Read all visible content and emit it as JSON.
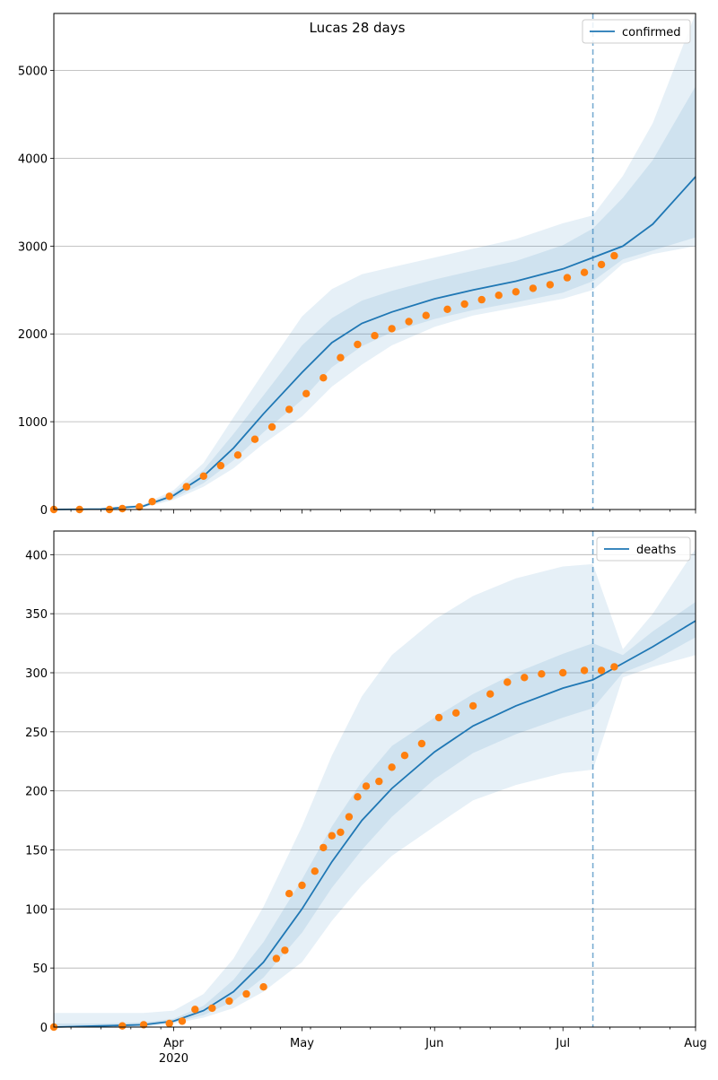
{
  "chart_data": [
    {
      "type": "line",
      "title": "Lucas 28 days",
      "xlabel": "",
      "ylabel": "",
      "xlim": [
        "2020-03-04",
        "2020-08-01"
      ],
      "ylim": [
        0,
        5650
      ],
      "yticks": [
        0,
        1000,
        2000,
        3000,
        4000,
        5000
      ],
      "grid": "horizontal",
      "legend": {
        "position": "top-right",
        "entries": [
          "confirmed"
        ]
      },
      "forecast_start": "2020-07-08",
      "series": [
        {
          "name": "confirmed",
          "kind": "model-median",
          "color": "#1f77b4",
          "x": [
            "2020-03-04",
            "2020-03-15",
            "2020-03-25",
            "2020-04-01",
            "2020-04-08",
            "2020-04-15",
            "2020-04-22",
            "2020-05-01",
            "2020-05-08",
            "2020-05-15",
            "2020-05-22",
            "2020-06-01",
            "2020-06-10",
            "2020-06-20",
            "2020-07-01",
            "2020-07-08",
            "2020-07-15",
            "2020-07-22",
            "2020-08-01"
          ],
          "y": [
            0,
            5,
            40,
            160,
            380,
            700,
            1090,
            1560,
            1900,
            2120,
            2250,
            2400,
            2500,
            2600,
            2740,
            2870,
            3000,
            3250,
            3790
          ],
          "bands": [
            {
              "lower": [
                0,
                4,
                30,
                130,
                300,
                560,
                880,
                1250,
                1620,
                1860,
                2020,
                2170,
                2270,
                2360,
                2470,
                2600,
                2850,
                2950,
                3100
              ],
              "upper": [
                0,
                6,
                50,
                190,
                450,
                860,
                1300,
                1870,
                2180,
                2380,
                2490,
                2620,
                2720,
                2830,
                3010,
                3200,
                3550,
                3980,
                4820
              ]
            },
            {
              "lower": [
                0,
                3,
                25,
                110,
                260,
                470,
                750,
                1060,
                1400,
                1650,
                1870,
                2080,
                2210,
                2300,
                2400,
                2500,
                2800,
                2910,
                3000
              ],
              "upper": [
                0,
                8,
                60,
                220,
                530,
                1050,
                1560,
                2200,
                2510,
                2680,
                2760,
                2870,
                2970,
                3080,
                3260,
                3350,
                3800,
                4400,
                5650
              ]
            }
          ]
        },
        {
          "name": "",
          "kind": "observed",
          "color": "#ff7f0e",
          "x": [
            "2020-03-04",
            "2020-03-10",
            "2020-03-17",
            "2020-03-20",
            "2020-03-24",
            "2020-03-27",
            "2020-03-31",
            "2020-04-04",
            "2020-04-08",
            "2020-04-12",
            "2020-04-16",
            "2020-04-20",
            "2020-04-24",
            "2020-04-28",
            "2020-05-02",
            "2020-05-06",
            "2020-05-10",
            "2020-05-14",
            "2020-05-18",
            "2020-05-22",
            "2020-05-26",
            "2020-05-30",
            "2020-06-04",
            "2020-06-08",
            "2020-06-12",
            "2020-06-16",
            "2020-06-20",
            "2020-06-24",
            "2020-06-28",
            "2020-07-02",
            "2020-07-06",
            "2020-07-10",
            "2020-07-13"
          ],
          "y": [
            0,
            0,
            0,
            10,
            30,
            90,
            150,
            260,
            380,
            500,
            620,
            800,
            940,
            1140,
            1320,
            1500,
            1730,
            1880,
            1980,
            2060,
            2140,
            2210,
            2280,
            2340,
            2390,
            2440,
            2480,
            2520,
            2560,
            2640,
            2700,
            2790,
            2890
          ]
        }
      ]
    },
    {
      "type": "line",
      "title": "",
      "xlabel": "",
      "ylabel": "",
      "xlim": [
        "2020-03-04",
        "2020-08-01"
      ],
      "ylim": [
        0,
        420
      ],
      "yticks": [
        0,
        50,
        100,
        150,
        200,
        250,
        300,
        350,
        400
      ],
      "xticks": [
        {
          "date": "2020-04-01",
          "label": "Apr",
          "sublabel": "2020"
        },
        {
          "date": "2020-05-01",
          "label": "May"
        },
        {
          "date": "2020-06-01",
          "label": "Jun"
        },
        {
          "date": "2020-07-01",
          "label": "Jul"
        },
        {
          "date": "2020-08-01",
          "label": "Aug"
        }
      ],
      "grid": "horizontal",
      "legend": {
        "position": "top-right",
        "entries": [
          "deaths"
        ]
      },
      "forecast_start": "2020-07-08",
      "series": [
        {
          "name": "deaths",
          "kind": "model-median",
          "color": "#1f77b4",
          "x": [
            "2020-03-04",
            "2020-03-15",
            "2020-03-25",
            "2020-04-01",
            "2020-04-08",
            "2020-04-15",
            "2020-04-22",
            "2020-05-01",
            "2020-05-08",
            "2020-05-15",
            "2020-05-22",
            "2020-06-01",
            "2020-06-10",
            "2020-06-20",
            "2020-07-01",
            "2020-07-08",
            "2020-07-15",
            "2020-07-22",
            "2020-08-01"
          ],
          "y": [
            0,
            1,
            2,
            5,
            14,
            30,
            55,
            100,
            140,
            175,
            202,
            233,
            255,
            272,
            287,
            294,
            308,
            322,
            344
          ],
          "bands": [
            {
              "lower": [
                0,
                0,
                1,
                4,
                10,
                22,
                42,
                80,
                118,
                150,
                178,
                210,
                232,
                248,
                262,
                270,
                300,
                310,
                330
              ],
              "upper": [
                3,
                3,
                4,
                7,
                18,
                40,
                72,
                125,
                170,
                208,
                238,
                262,
                282,
                300,
                316,
                325,
                315,
                335,
                360
              ]
            },
            {
              "lower": [
                0,
                0,
                0,
                3,
                8,
                16,
                30,
                55,
                90,
                120,
                145,
                170,
                192,
                205,
                215,
                218,
                296,
                305,
                315
              ],
              "upper": [
                12,
                12,
                12,
                14,
                28,
                58,
                102,
                170,
                230,
                280,
                315,
                345,
                365,
                380,
                390,
                392,
                320,
                350,
                405
              ]
            }
          ]
        },
        {
          "name": "",
          "kind": "observed",
          "color": "#ff7f0e",
          "x": [
            "2020-03-04",
            "2020-03-20",
            "2020-03-25",
            "2020-03-31",
            "2020-04-03",
            "2020-04-06",
            "2020-04-10",
            "2020-04-14",
            "2020-04-18",
            "2020-04-22",
            "2020-04-25",
            "2020-04-27",
            "2020-04-28",
            "2020-05-01",
            "2020-05-04",
            "2020-05-06",
            "2020-05-08",
            "2020-05-10",
            "2020-05-12",
            "2020-05-14",
            "2020-05-16",
            "2020-05-19",
            "2020-05-22",
            "2020-05-25",
            "2020-05-29",
            "2020-06-02",
            "2020-06-06",
            "2020-06-10",
            "2020-06-14",
            "2020-06-18",
            "2020-06-22",
            "2020-06-26",
            "2020-07-01",
            "2020-07-06",
            "2020-07-10",
            "2020-07-13"
          ],
          "y": [
            0,
            1,
            2,
            3,
            5,
            15,
            16,
            22,
            28,
            34,
            58,
            65,
            113,
            120,
            132,
            152,
            162,
            165,
            178,
            195,
            204,
            208,
            220,
            230,
            240,
            262,
            266,
            272,
            282,
            292,
            296,
            299,
            300,
            302,
            302,
            305
          ]
        }
      ]
    }
  ]
}
